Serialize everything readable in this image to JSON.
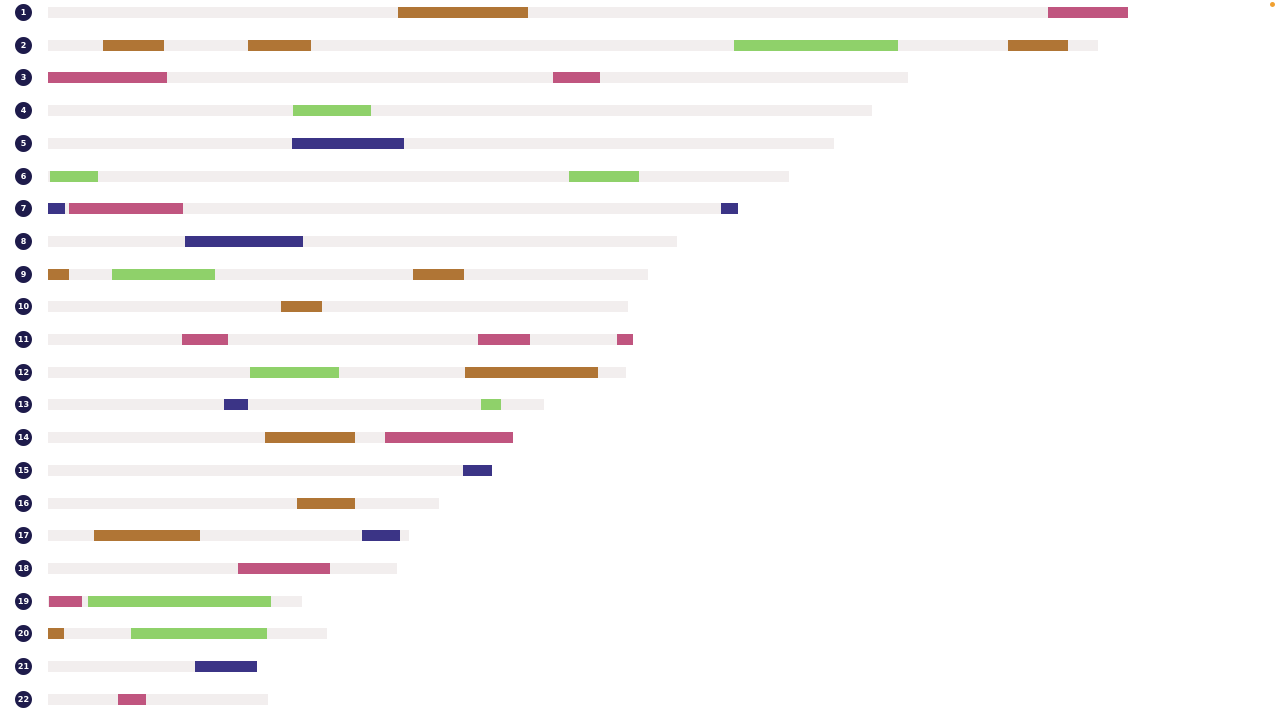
{
  "colors": {
    "brown": "#b07535",
    "pink": "#c0557f",
    "green": "#8fd16a",
    "navy": "#3b3486",
    "track": "#f2eeee",
    "label": "#1e1b4b",
    "accent_dot": "#f0a030"
  },
  "rows": [
    {
      "label": "1",
      "length": 1080,
      "segments": [
        {
          "start": 350,
          "end": 480,
          "color": "brown"
        },
        {
          "start": 1000,
          "end": 1080,
          "color": "pink"
        }
      ]
    },
    {
      "label": "2",
      "length": 1050,
      "segments": [
        {
          "start": 55,
          "end": 116,
          "color": "brown"
        },
        {
          "start": 200,
          "end": 263,
          "color": "brown"
        },
        {
          "start": 686,
          "end": 850,
          "color": "green"
        },
        {
          "start": 960,
          "end": 1020,
          "color": "brown"
        }
      ]
    },
    {
      "label": "3",
      "length": 860,
      "segments": [
        {
          "start": 0,
          "end": 119,
          "color": "pink"
        },
        {
          "start": 505,
          "end": 552,
          "color": "pink"
        }
      ]
    },
    {
      "label": "4",
      "length": 824,
      "segments": [
        {
          "start": 245,
          "end": 323,
          "color": "green"
        }
      ]
    },
    {
      "label": "5",
      "length": 786,
      "segments": [
        {
          "start": 244,
          "end": 356,
          "color": "navy"
        }
      ]
    },
    {
      "label": "6",
      "length": 741,
      "segments": [
        {
          "start": 2,
          "end": 50,
          "color": "green"
        },
        {
          "start": 521,
          "end": 591,
          "color": "green"
        }
      ]
    },
    {
      "label": "7",
      "length": 690,
      "segments": [
        {
          "start": 0,
          "end": 17,
          "color": "navy"
        },
        {
          "start": 21,
          "end": 135,
          "color": "pink"
        },
        {
          "start": 673,
          "end": 690,
          "color": "navy"
        }
      ]
    },
    {
      "label": "8",
      "length": 629,
      "segments": [
        {
          "start": 137,
          "end": 255,
          "color": "navy"
        }
      ]
    },
    {
      "label": "9",
      "length": 600,
      "segments": [
        {
          "start": 0,
          "end": 21,
          "color": "brown"
        },
        {
          "start": 64,
          "end": 167,
          "color": "green"
        },
        {
          "start": 365,
          "end": 416,
          "color": "brown"
        }
      ]
    },
    {
      "label": "10",
      "length": 580,
      "segments": [
        {
          "start": 233,
          "end": 274,
          "color": "brown"
        }
      ]
    },
    {
      "label": "11",
      "length": 585,
      "segments": [
        {
          "start": 134,
          "end": 180,
          "color": "pink"
        },
        {
          "start": 430,
          "end": 482,
          "color": "pink"
        },
        {
          "start": 569,
          "end": 585,
          "color": "pink"
        }
      ]
    },
    {
      "label": "12",
      "length": 578,
      "segments": [
        {
          "start": 202,
          "end": 291,
          "color": "green"
        },
        {
          "start": 417,
          "end": 550,
          "color": "brown"
        }
      ]
    },
    {
      "label": "13",
      "length": 496,
      "segments": [
        {
          "start": 176,
          "end": 200,
          "color": "navy"
        },
        {
          "start": 433,
          "end": 453,
          "color": "green"
        }
      ]
    },
    {
      "label": "14",
      "length": 465,
      "segments": [
        {
          "start": 217,
          "end": 307,
          "color": "brown"
        },
        {
          "start": 337,
          "end": 465,
          "color": "pink"
        }
      ]
    },
    {
      "label": "15",
      "length": 444,
      "segments": [
        {
          "start": 415,
          "end": 444,
          "color": "navy"
        }
      ]
    },
    {
      "label": "16",
      "length": 391,
      "segments": [
        {
          "start": 249,
          "end": 307,
          "color": "brown"
        }
      ]
    },
    {
      "label": "17",
      "length": 361,
      "segments": [
        {
          "start": 46,
          "end": 152,
          "color": "brown"
        },
        {
          "start": 314,
          "end": 352,
          "color": "navy"
        }
      ]
    },
    {
      "label": "18",
      "length": 349,
      "segments": [
        {
          "start": 190,
          "end": 282,
          "color": "pink"
        }
      ]
    },
    {
      "label": "19",
      "length": 254,
      "segments": [
        {
          "start": 1,
          "end": 34,
          "color": "pink"
        },
        {
          "start": 40,
          "end": 223,
          "color": "green"
        }
      ]
    },
    {
      "label": "20",
      "length": 279,
      "segments": [
        {
          "start": 0,
          "end": 16,
          "color": "brown"
        },
        {
          "start": 83,
          "end": 219,
          "color": "green"
        }
      ]
    },
    {
      "label": "21",
      "length": 209,
      "segments": [
        {
          "start": 147,
          "end": 209,
          "color": "navy"
        }
      ]
    },
    {
      "label": "22",
      "length": 220,
      "segments": [
        {
          "start": 70,
          "end": 98,
          "color": "pink"
        }
      ]
    }
  ]
}
